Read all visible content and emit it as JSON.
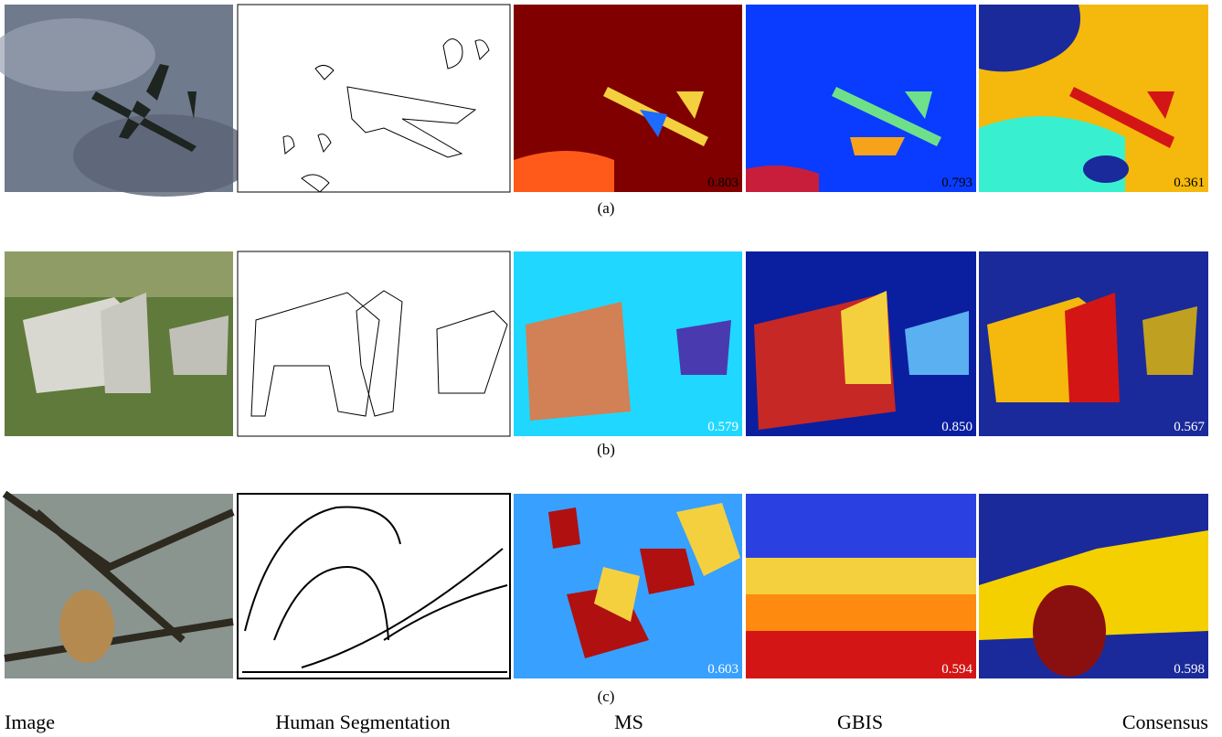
{
  "rows": [
    {
      "label": "(a)",
      "scores": [
        "0.803",
        "0.793",
        "0.361"
      ]
    },
    {
      "label": "(b)",
      "scores": [
        "0.579",
        "0.850",
        "0.567"
      ]
    },
    {
      "label": "(c)",
      "scores": [
        "0.603",
        "0.594",
        "0.598"
      ]
    }
  ],
  "columns": [
    "Image",
    "Human Segmentation",
    "MS",
    "GBIS",
    "Consensus"
  ]
}
